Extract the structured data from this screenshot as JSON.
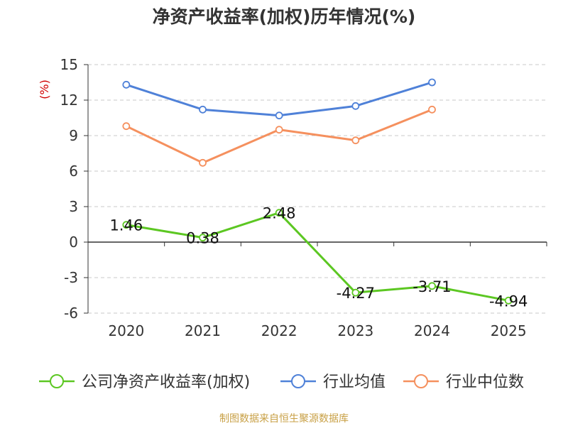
{
  "chart_data": {
    "type": "line",
    "title": "净资产收益率(加权)历年情况(%)",
    "ylabel": "(%)",
    "x": [
      "2020",
      "2021",
      "2022",
      "2023",
      "2024",
      "2025"
    ],
    "ylim": [
      -6,
      15
    ],
    "yticks": [
      15,
      12,
      9,
      6,
      3,
      0,
      -3,
      -6
    ],
    "grid": true,
    "legend_position": "bottom",
    "series": [
      {
        "name": "公司净资产收益率(加权)",
        "color": "#5cc722",
        "values": [
          1.46,
          0.38,
          2.48,
          -4.27,
          -3.71,
          -4.94
        ],
        "labels": [
          "1.46",
          "0.38",
          "2.48",
          "-4.27",
          "-3.71",
          "-4.94"
        ]
      },
      {
        "name": "行业均值",
        "color": "#4f81d8",
        "values": [
          13.3,
          11.2,
          10.7,
          11.5,
          13.5,
          null
        ]
      },
      {
        "name": "行业中位数",
        "color": "#f5905e",
        "values": [
          9.8,
          6.7,
          9.5,
          8.6,
          11.2,
          null
        ]
      }
    ]
  },
  "footer": {
    "source": "制图数据来自恒生聚源数据库"
  }
}
